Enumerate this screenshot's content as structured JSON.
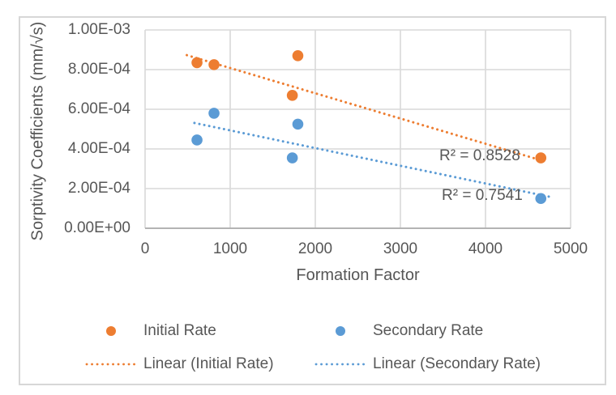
{
  "chart_data": {
    "type": "scatter",
    "title": "",
    "xlabel": "Formation Factor",
    "ylabel": "Sorptivity Coefficients (mm/√s)",
    "xlim": [
      0,
      5000
    ],
    "ylim": [
      0,
      0.001
    ],
    "grid": true,
    "x_ticks": {
      "values": [
        0,
        1000,
        2000,
        3000,
        4000,
        5000
      ],
      "labels": [
        "0",
        "1000",
        "2000",
        "3000",
        "4000",
        "5000"
      ]
    },
    "y_ticks": {
      "values": [
        0,
        0.0002,
        0.0004,
        0.0006,
        0.0008,
        0.001
      ],
      "labels": [
        "0.00E+00",
        "2.00E-04",
        "4.00E-04",
        "6.00E-04",
        "8.00E-04",
        "1.00E-03"
      ]
    },
    "series": [
      {
        "name": "Initial Rate",
        "color": "#ED7D31",
        "points": [
          [
            610,
            0.000835
          ],
          [
            810,
            0.000825
          ],
          [
            1730,
            0.00067
          ],
          [
            1795,
            0.00087
          ],
          [
            4650,
            0.000355
          ]
        ],
        "trendline": {
          "label": "Linear (Initial Rate)",
          "style": "dotted",
          "x1": 490,
          "y1": 0.000873,
          "x2": 4715,
          "y2": 0.000335,
          "r_squared": 0.8528
        }
      },
      {
        "name": "Secondary Rate",
        "color": "#5B9BD5",
        "points": [
          [
            610,
            0.000445
          ],
          [
            810,
            0.00058
          ],
          [
            1730,
            0.000355
          ],
          [
            1795,
            0.000525
          ],
          [
            4650,
            0.00015
          ]
        ],
        "trendline": {
          "label": "Linear (Secondary Rate)",
          "style": "dotted",
          "x1": 580,
          "y1": 0.000531,
          "x2": 4750,
          "y2": 0.000159,
          "r_squared": 0.7541
        }
      }
    ],
    "annotations": [
      {
        "text": "R² = 0.8528",
        "series": "Initial Rate"
      },
      {
        "text": "R² = 0.7541",
        "series": "Secondary Rate"
      }
    ],
    "legend": {
      "position": "bottom"
    },
    "colors": {
      "initial_rate": "#ED7D31",
      "secondary_rate": "#5B9BD5",
      "text": "#575757",
      "gridline": "#D9D9D9",
      "axis_line": "#B3B3B3",
      "frame_border": "#D7D7D7"
    }
  }
}
